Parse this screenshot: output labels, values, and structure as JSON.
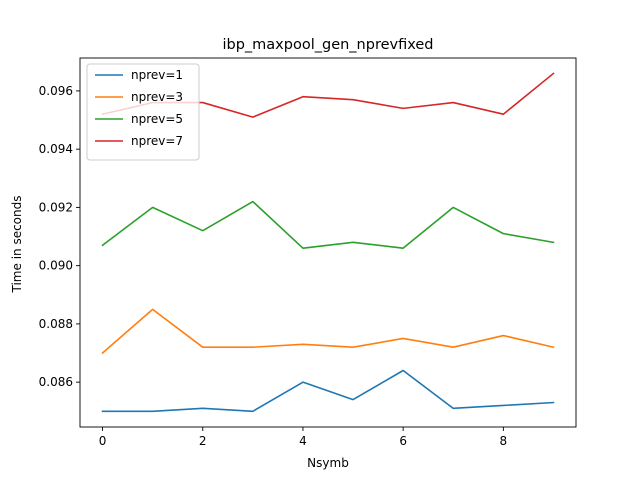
{
  "chart_data": {
    "type": "line",
    "title": "ibp_maxpool_gen_nprevfixed",
    "xlabel": "Nsymb",
    "ylabel": "Time in seconds",
    "x": [
      0,
      1,
      2,
      3,
      4,
      5,
      6,
      7,
      8,
      9
    ],
    "xlim": [
      -0.45,
      9.45
    ],
    "ylim": [
      0.08446,
      0.09713
    ],
    "xticks": [
      0,
      2,
      4,
      6,
      8
    ],
    "yticks": [
      0.086,
      0.088,
      0.09,
      0.092,
      0.094,
      0.096
    ],
    "xtick_labels": [
      "0",
      "2",
      "4",
      "6",
      "8"
    ],
    "ytick_labels": [
      "0.086",
      "0.088",
      "0.090",
      "0.092",
      "0.094",
      "0.096"
    ],
    "legend_position": "top-left",
    "grid": false,
    "series": [
      {
        "name": "nprev=1",
        "color": "#1f77b4",
        "values": [
          0.085,
          0.085,
          0.0851,
          0.085,
          0.086,
          0.0854,
          0.0864,
          0.0851,
          0.0852,
          0.0853
        ]
      },
      {
        "name": "nprev=3",
        "color": "#ff7f0e",
        "values": [
          0.087,
          0.0885,
          0.0872,
          0.0872,
          0.0873,
          0.0872,
          0.0875,
          0.0872,
          0.0876,
          0.0872
        ]
      },
      {
        "name": "nprev=5",
        "color": "#2ca02c",
        "values": [
          0.0907,
          0.092,
          0.0912,
          0.0922,
          0.0906,
          0.0908,
          0.0906,
          0.092,
          0.0911,
          0.0908
        ]
      },
      {
        "name": "nprev=7",
        "color": "#d62728",
        "values": [
          0.0952,
          0.0956,
          0.0956,
          0.0951,
          0.0958,
          0.0957,
          0.0954,
          0.0956,
          0.0952,
          0.0966
        ]
      }
    ]
  }
}
